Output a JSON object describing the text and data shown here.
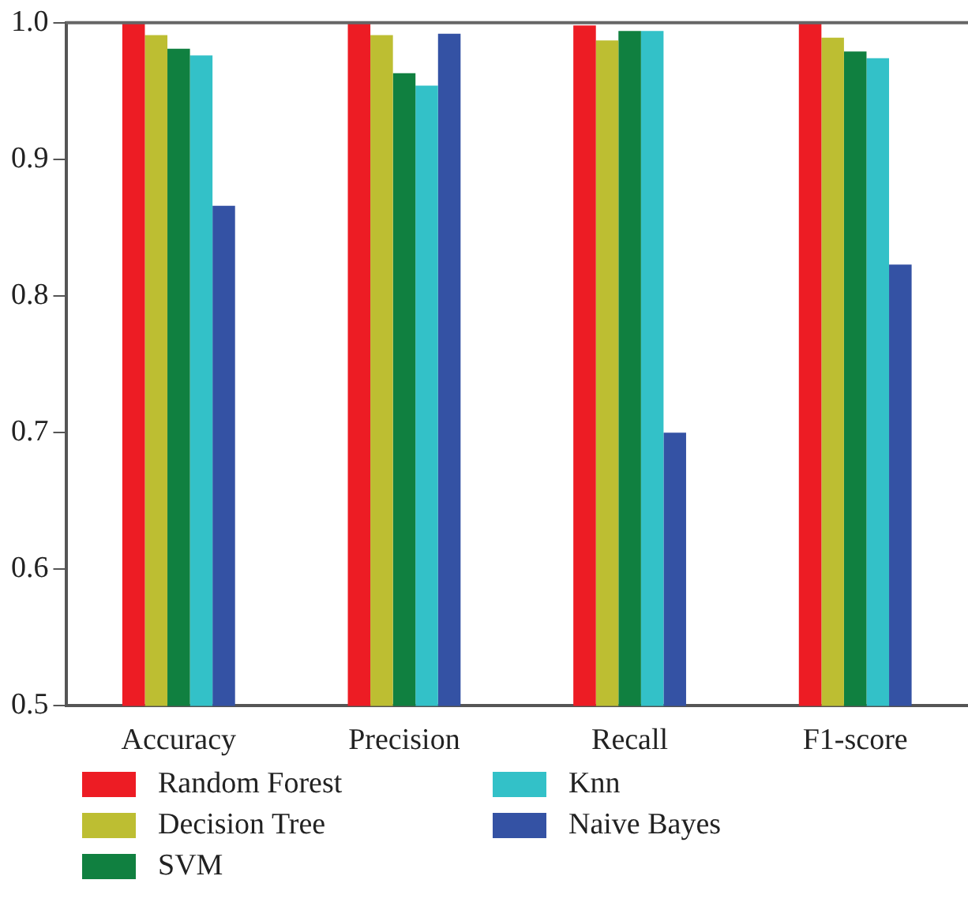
{
  "chart_data": {
    "type": "bar",
    "categories": [
      "Accuracy",
      "Precision",
      "Recall",
      "F1-score"
    ],
    "series": [
      {
        "name": "Random Forest",
        "color": "#ed1c24",
        "values": [
          1.0,
          1.0,
          0.998,
          1.0
        ]
      },
      {
        "name": "Decision Tree",
        "color": "#bdbe32",
        "values": [
          0.991,
          0.991,
          0.987,
          0.989
        ]
      },
      {
        "name": "SVM",
        "color": "#108040",
        "values": [
          0.981,
          0.963,
          0.994,
          0.979
        ]
      },
      {
        "name": "Knn",
        "color": "#33c1c8",
        "values": [
          0.976,
          0.954,
          0.994,
          0.974
        ]
      },
      {
        "name": "Naive Bayes",
        "color": "#3452a4",
        "values": [
          0.866,
          0.992,
          0.7,
          0.823
        ]
      }
    ],
    "ylim": [
      0.5,
      1.0
    ],
    "yticks": [
      0.5,
      0.6,
      0.7,
      0.8,
      0.9,
      {
        "value": 1.0,
        "label": "1.0"
      }
    ],
    "grid": false,
    "legend": "bottom"
  }
}
